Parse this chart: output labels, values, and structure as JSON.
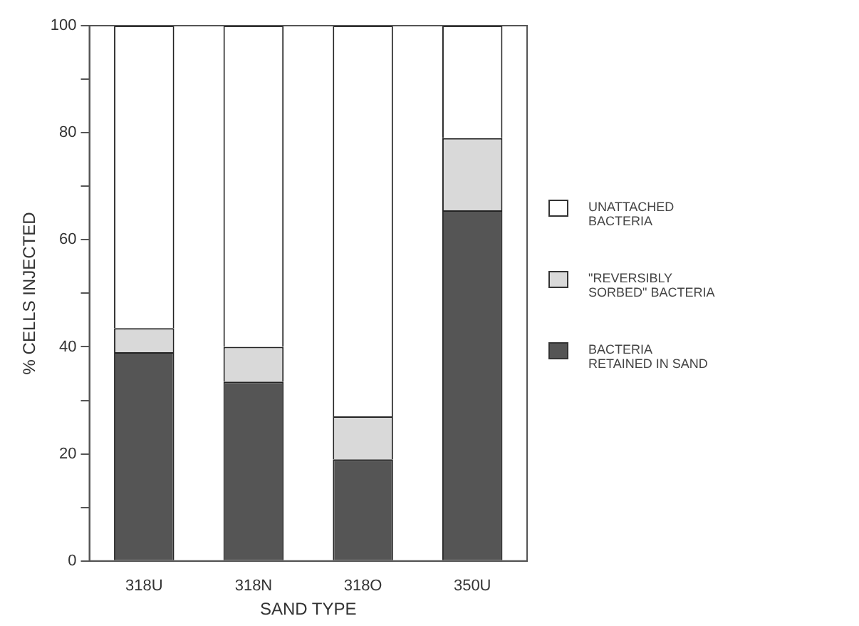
{
  "chart_data": {
    "type": "bar",
    "stacked": true,
    "xlabel": "SAND TYPE",
    "ylabel": "% CELLS INJECTED",
    "categories": [
      "318U",
      "318N",
      "318O",
      "350U"
    ],
    "series": [
      {
        "name": "BACTERIA RETAINED IN SAND",
        "color": "#555555",
        "values": [
          39,
          33.5,
          19,
          65.5
        ]
      },
      {
        "name": "\"REVERSIBLY SORBED\" BACTERIA",
        "color": "#d9d9d9",
        "values": [
          4.5,
          6.5,
          8,
          13.5
        ]
      },
      {
        "name": "UNATTACHED BACTERIA",
        "color": "#ffffff",
        "values": [
          56.5,
          60,
          73,
          21
        ]
      }
    ],
    "ylim": [
      0,
      100
    ],
    "yticks": [
      0,
      {
        "value": 10,
        "label": null
      },
      20,
      {
        "value": 30,
        "label": null
      },
      40,
      {
        "value": 50,
        "label": null
      },
      60,
      {
        "value": 70,
        "label": null
      },
      80,
      {
        "value": 90,
        "label": null
      },
      100
    ],
    "grid": false,
    "legend": "right"
  }
}
